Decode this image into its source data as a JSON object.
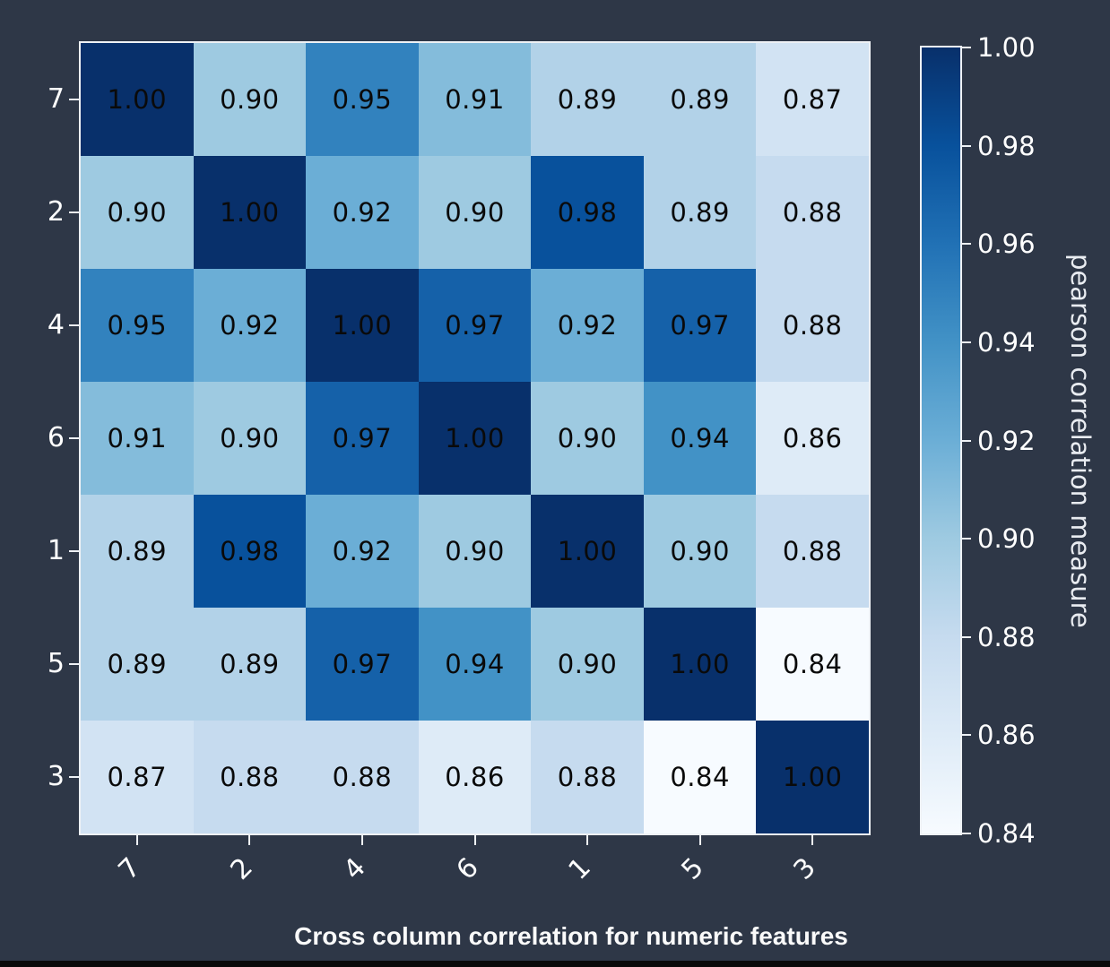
{
  "figure": {
    "background": "#2e3747",
    "bottom_bar_color": "#0a0a0a",
    "spine_color": "#eef1f5"
  },
  "chart_data": {
    "type": "heatmap",
    "title": "Cross column correlation for numeric features",
    "rows": [
      "7",
      "2",
      "4",
      "6",
      "1",
      "5",
      "3"
    ],
    "columns": [
      "7",
      "2",
      "4",
      "6",
      "1",
      "5",
      "3"
    ],
    "matrix": [
      [
        1.0,
        0.9,
        0.95,
        0.91,
        0.89,
        0.89,
        0.87
      ],
      [
        0.9,
        1.0,
        0.92,
        0.9,
        0.98,
        0.89,
        0.88
      ],
      [
        0.95,
        0.92,
        1.0,
        0.97,
        0.92,
        0.97,
        0.88
      ],
      [
        0.91,
        0.9,
        0.97,
        1.0,
        0.9,
        0.94,
        0.86
      ],
      [
        0.89,
        0.98,
        0.92,
        0.9,
        1.0,
        0.9,
        0.88
      ],
      [
        0.89,
        0.89,
        0.97,
        0.94,
        0.9,
        1.0,
        0.84
      ],
      [
        0.87,
        0.88,
        0.88,
        0.86,
        0.88,
        0.84,
        1.0
      ]
    ],
    "value_decimals": 2,
    "colormap": "Blues",
    "vmin": 0.84,
    "vmax": 1.0,
    "annotation_text_color": "#0a0a0a",
    "tick_text_color": "#ffffff",
    "x_tick_rotation_deg": 45,
    "grid": false,
    "colorbar": {
      "position": "right",
      "label": "pearson correlation measure",
      "ticks": [
        1.0,
        0.98,
        0.96,
        0.94,
        0.92,
        0.9,
        0.88,
        0.86,
        0.84
      ]
    }
  }
}
